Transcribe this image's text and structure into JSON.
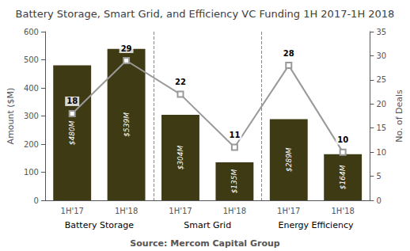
{
  "chart_data": {
    "type": "bar",
    "title": "Battery Storage, Smart Grid, and Efficiency VC Funding 1H 2017-1H 2018",
    "categories": [
      "1H'17",
      "1H'18",
      "1H'17",
      "1H'18",
      "1H'17",
      "1H'18"
    ],
    "groups": [
      "Battery Storage",
      "Smart Grid",
      "Energy Efficiency"
    ],
    "footer": "Source: Mercom Capital Group",
    "ylabel": "Amount ($M)",
    "y2label": "No. of Deals",
    "ylim": [
      0,
      600
    ],
    "yticks": [
      0,
      100,
      200,
      300,
      400,
      500,
      600
    ],
    "y2lim": [
      0,
      35
    ],
    "y2ticks": [
      0,
      5,
      10,
      15,
      20,
      25,
      30,
      35
    ],
    "grid": false,
    "series": [
      {
        "type": "bar",
        "color": "#3d3a14",
        "values": [
          480,
          539,
          304,
          135,
          289,
          164
        ],
        "value_labels": [
          "$480M",
          "$539M",
          "$304M",
          "$135M",
          "$289M",
          "$164M"
        ],
        "data_labels": true
      },
      {
        "type": "line",
        "axis": "y2",
        "color": "#999999",
        "marker": "square",
        "values": [
          18,
          29,
          22,
          11,
          28,
          10
        ],
        "data_labels": true
      }
    ]
  }
}
